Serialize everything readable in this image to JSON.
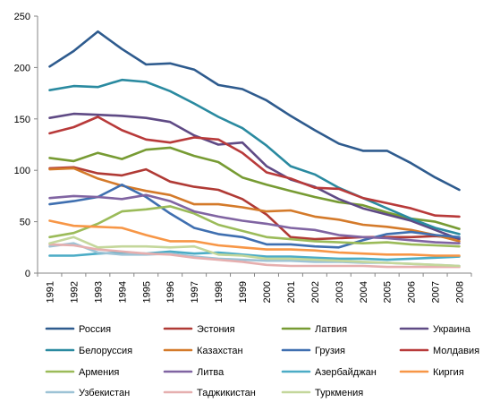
{
  "chart_data": {
    "type": "line",
    "x": [
      "1991",
      "1992",
      "1993",
      "1994",
      "1995",
      "1996",
      "1997",
      "1998",
      "1999",
      "2000",
      "2001",
      "2002",
      "2003",
      "2004",
      "2005",
      "2006",
      "2007",
      "2008"
    ],
    "ylim": [
      0,
      250
    ],
    "yticks": [
      0,
      50,
      100,
      150,
      200,
      250
    ],
    "grid": false,
    "legend_position": "bottom",
    "series": [
      {
        "name": "Россия",
        "color": "#2E5B8E",
        "values": [
          201,
          216,
          235,
          218,
          203,
          204,
          198,
          183,
          179,
          168,
          153,
          139,
          126,
          119,
          119,
          107,
          93,
          81
        ]
      },
      {
        "name": "Эстония",
        "color": "#B03A35",
        "values": [
          102,
          103,
          97,
          95,
          101,
          89,
          84,
          81,
          72,
          57,
          35,
          33,
          34,
          35,
          35,
          35,
          36,
          34
        ]
      },
      {
        "name": "Латвия",
        "color": "#779B33",
        "values": [
          112,
          109,
          117,
          111,
          120,
          122,
          114,
          108,
          93,
          86,
          80,
          74,
          69,
          66,
          59,
          53,
          50,
          43
        ]
      },
      {
        "name": "Украина",
        "color": "#5F4A85",
        "values": [
          151,
          155,
          154,
          153,
          151,
          147,
          134,
          125,
          127,
          104,
          91,
          84,
          72,
          63,
          57,
          51,
          42,
          33
        ]
      },
      {
        "name": "Белоруссия",
        "color": "#2A8AA0",
        "values": [
          178,
          182,
          181,
          188,
          186,
          177,
          165,
          152,
          141,
          124,
          104,
          96,
          83,
          73,
          63,
          53,
          44,
          38
        ]
      },
      {
        "name": "Казахстан",
        "color": "#D47A2A",
        "values": [
          101,
          102,
          92,
          85,
          80,
          76,
          67,
          67,
          64,
          60,
          61,
          55,
          52,
          47,
          45,
          42,
          37,
          31
        ]
      },
      {
        "name": "Грузия",
        "color": "#3F6FB0",
        "values": [
          67,
          70,
          74,
          86,
          74,
          58,
          44,
          38,
          35,
          28,
          28,
          26,
          25,
          32,
          38,
          40,
          37,
          35
        ]
      },
      {
        "name": "Молдавия",
        "color": "#B83A3A",
        "values": [
          136,
          142,
          152,
          139,
          130,
          127,
          132,
          130,
          117,
          98,
          92,
          83,
          82,
          73,
          68,
          63,
          56,
          55
        ]
      },
      {
        "name": "Армения",
        "color": "#9BBB59",
        "values": [
          35,
          39,
          48,
          60,
          62,
          65,
          58,
          47,
          41,
          35,
          33,
          31,
          30,
          29,
          30,
          28,
          27,
          26
        ]
      },
      {
        "name": "Литва",
        "color": "#8064A2",
        "values": [
          73,
          75,
          74,
          72,
          76,
          70,
          60,
          55,
          51,
          48,
          44,
          42,
          37,
          35,
          34,
          32,
          30,
          29
        ]
      },
      {
        "name": "Азербайджан",
        "color": "#4BACC6",
        "values": [
          17,
          17,
          19,
          20,
          19,
          21,
          19,
          20,
          18,
          16,
          16,
          15,
          14,
          14,
          13,
          14,
          15,
          16
        ]
      },
      {
        "name": "Киргия",
        "color": "#F79646",
        "values": [
          51,
          46,
          45,
          44,
          37,
          31,
          31,
          27,
          25,
          23,
          23,
          22,
          20,
          19,
          18,
          18,
          17,
          17
        ]
      },
      {
        "name": "Узбекистан",
        "color": "#9DC3D6",
        "values": [
          26,
          29,
          20,
          18,
          18,
          19,
          16,
          14,
          13,
          12,
          12,
          11,
          11,
          10,
          10,
          9,
          8,
          7
        ]
      },
      {
        "name": "Таджикистан",
        "color": "#E6AFAF",
        "values": [
          28,
          27,
          23,
          21,
          19,
          18,
          15,
          13,
          11,
          8,
          7,
          7,
          7,
          7,
          6,
          6,
          6,
          6
        ]
      },
      {
        "name": "Туркмения",
        "color": "#C4D79B",
        "values": [
          29,
          35,
          25,
          26,
          26,
          25,
          26,
          18,
          17,
          14,
          14,
          13,
          12,
          11,
          10,
          9,
          8,
          7
        ]
      }
    ]
  }
}
